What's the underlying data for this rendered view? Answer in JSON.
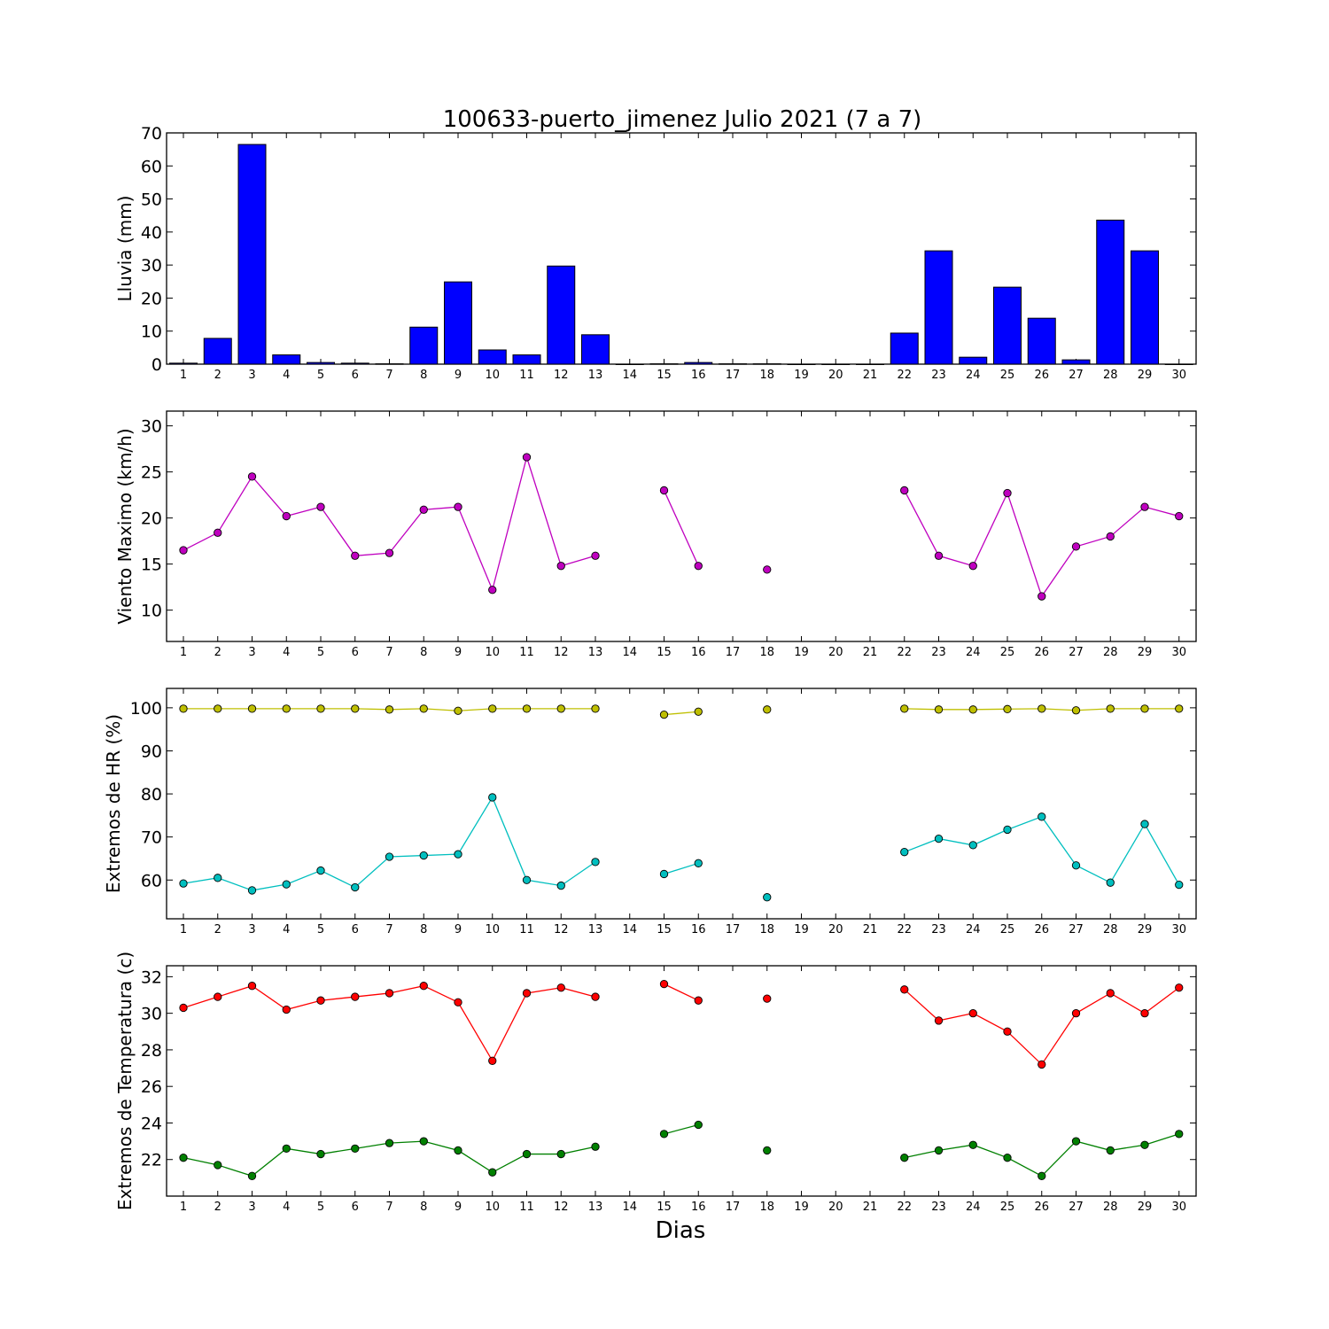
{
  "title": "100633-puerto_jimenez Julio 2021  (7 a 7)",
  "xlabel": "Dias",
  "days": [
    1,
    2,
    3,
    4,
    5,
    6,
    7,
    8,
    9,
    10,
    11,
    12,
    13,
    14,
    15,
    16,
    17,
    18,
    19,
    20,
    21,
    22,
    23,
    24,
    25,
    26,
    27,
    28,
    29,
    30
  ],
  "chart_data": [
    {
      "type": "bar",
      "ylabel": "Lluvia (mm)",
      "ylim": [
        0,
        70
      ],
      "yticks": [
        0,
        10,
        20,
        30,
        40,
        50,
        60,
        70
      ],
      "series": [
        {
          "color": "#0000ff",
          "values": [
            0.3,
            7.8,
            66.5,
            2.8,
            0.5,
            0.3,
            0.1,
            11.2,
            24.9,
            4.3,
            2.8,
            29.7,
            8.9,
            0,
            0.1,
            0.5,
            0.1,
            0.1,
            0,
            0,
            0,
            9.4,
            34.3,
            2.1,
            23.3,
            13.9,
            1.3,
            43.6,
            34.3,
            0
          ]
        }
      ]
    },
    {
      "type": "line",
      "ylabel": "Viento Maximo (km/h)",
      "ylim": [
        6.6,
        31.6
      ],
      "yticks": [
        10,
        15,
        20,
        25,
        30
      ],
      "series": [
        {
          "color": "#bf00bf",
          "values": [
            16.5,
            18.4,
            24.5,
            20.2,
            21.2,
            15.9,
            16.2,
            20.9,
            21.2,
            12.2,
            26.6,
            14.8,
            15.9,
            null,
            23.0,
            14.8,
            null,
            14.4,
            null,
            null,
            null,
            23.0,
            15.9,
            14.8,
            22.7,
            11.5,
            16.9,
            18.0,
            21.2,
            20.2
          ]
        }
      ]
    },
    {
      "type": "line",
      "ylabel": "Extremos de HR (%)",
      "ylim": [
        51,
        104.5
      ],
      "yticks": [
        60,
        70,
        80,
        90,
        100
      ],
      "series": [
        {
          "color": "#bfbf00",
          "values": [
            99.8,
            99.8,
            99.8,
            99.8,
            99.8,
            99.8,
            99.6,
            99.8,
            99.3,
            99.8,
            99.8,
            99.8,
            99.8,
            null,
            98.4,
            99.1,
            null,
            99.6,
            null,
            null,
            null,
            99.8,
            99.6,
            99.6,
            99.7,
            99.8,
            99.4,
            99.8,
            99.8,
            99.8
          ]
        },
        {
          "color": "#00bfbf",
          "values": [
            59.2,
            60.5,
            57.6,
            59.0,
            62.2,
            58.3,
            65.4,
            65.7,
            66.0,
            79.2,
            60.0,
            58.7,
            64.2,
            null,
            61.4,
            63.9,
            null,
            56.0,
            null,
            null,
            null,
            66.5,
            69.6,
            68.1,
            71.7,
            74.7,
            63.4,
            59.4,
            73.0,
            58.9
          ]
        }
      ]
    },
    {
      "type": "line",
      "ylabel": "Extremos de Temperatura (c)",
      "ylim": [
        20,
        32.6
      ],
      "yticks": [
        22,
        24,
        26,
        28,
        30,
        32
      ],
      "series": [
        {
          "color": "#ff0000",
          "values": [
            30.3,
            30.9,
            31.5,
            30.2,
            30.7,
            30.9,
            31.1,
            31.5,
            30.6,
            27.4,
            31.1,
            31.4,
            30.9,
            null,
            31.6,
            30.7,
            null,
            30.8,
            null,
            null,
            null,
            31.3,
            29.6,
            30.0,
            29.0,
            27.2,
            30.0,
            31.1,
            30.0,
            31.4
          ]
        },
        {
          "color": "#008000",
          "values": [
            22.1,
            21.7,
            21.1,
            22.6,
            22.3,
            22.6,
            22.9,
            23.0,
            22.5,
            21.3,
            22.3,
            22.3,
            22.7,
            null,
            23.4,
            23.9,
            null,
            22.5,
            null,
            null,
            null,
            22.1,
            22.5,
            22.8,
            22.1,
            21.1,
            23.0,
            22.5,
            22.8,
            23.4
          ]
        }
      ]
    }
  ]
}
